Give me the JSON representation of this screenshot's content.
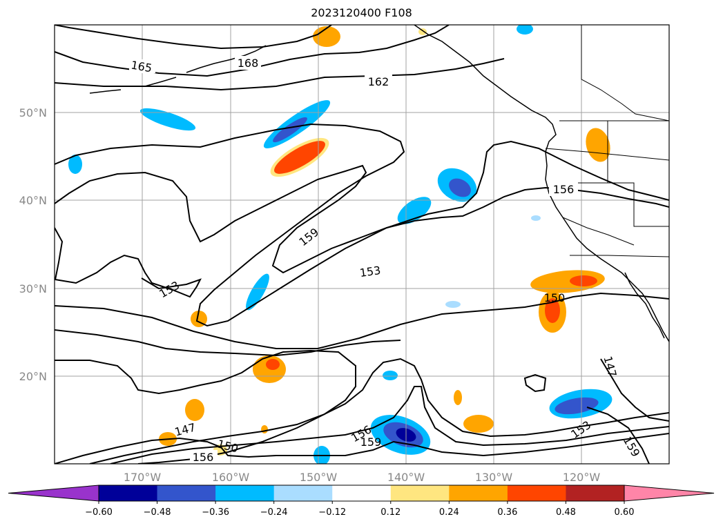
{
  "title": "2023120400 F108",
  "lat_labels": [
    "50°N",
    "40°N",
    "30°N",
    "20°N"
  ],
  "lon_labels": [
    "170°W",
    "160°W",
    "150°W",
    "140°W",
    "130°W",
    "120°W"
  ],
  "contour_labels": [
    "165",
    "168",
    "162",
    "156",
    "159",
    "153",
    "153",
    "150",
    "147",
    "147",
    "150",
    "156",
    "156",
    "159",
    "153",
    "159"
  ],
  "colorbar": {
    "ticks": [
      "−0.60",
      "−0.48",
      "−0.36",
      "−0.24",
      "−0.12",
      "0.12",
      "0.24",
      "0.36",
      "0.48",
      "0.60"
    ],
    "colors": [
      "#9933cc",
      "#000099",
      "#3355cc",
      "#00bbff",
      "#aaddff",
      "#ffffff",
      "#ffe680",
      "#ffa500",
      "#ff4500",
      "#b22222",
      "#ff85a8"
    ]
  }
}
